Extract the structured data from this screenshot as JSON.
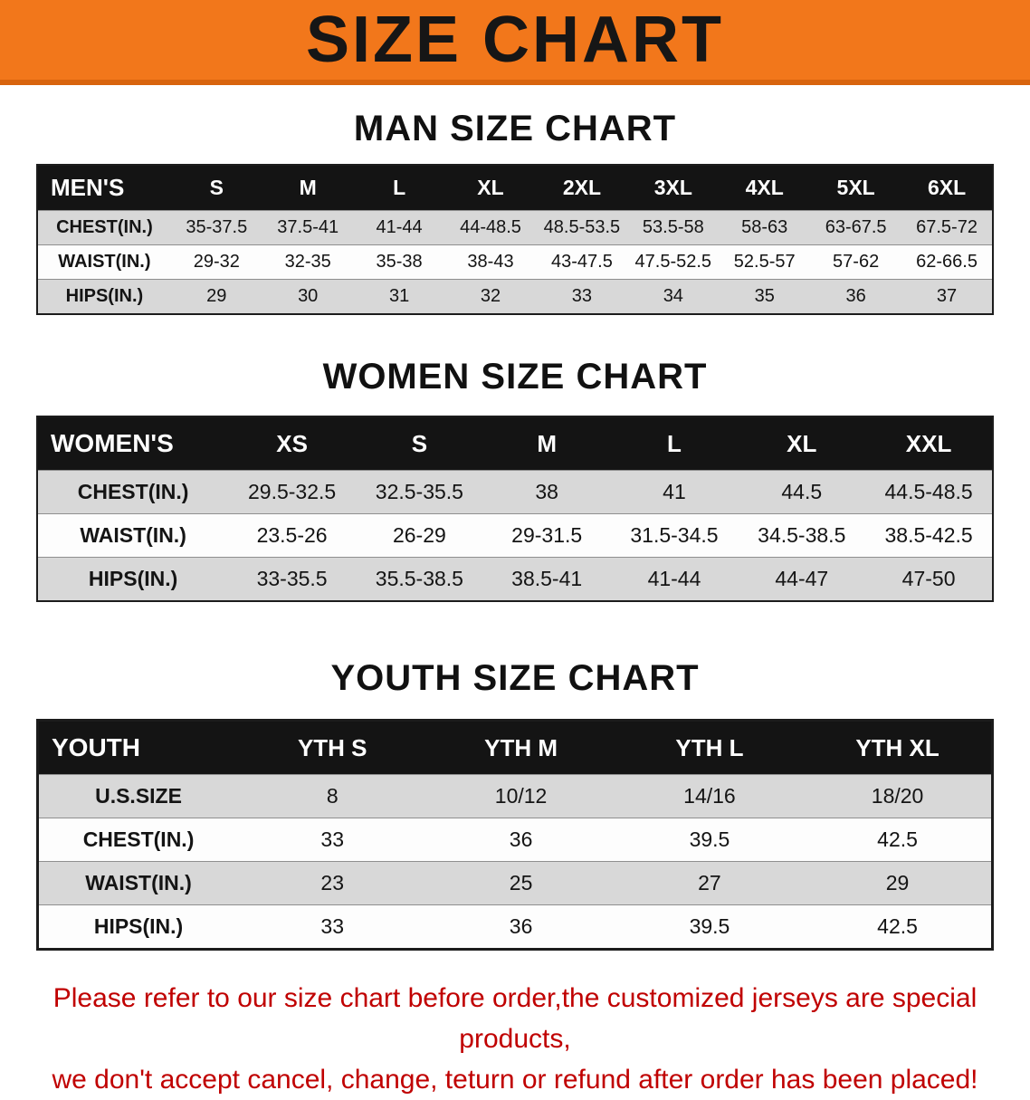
{
  "banner": {
    "title": "SIZE CHART"
  },
  "colors": {
    "banner_bg": "#F2771B",
    "banner_edge": "#D8640E",
    "table_header_bg": "#141414",
    "shaded_row_bg": "#D8D8D8",
    "notice_text": "#C00000"
  },
  "sections": [
    {
      "title": "MAN SIZE CHART",
      "header_label": "MEN'S",
      "columns": [
        "S",
        "M",
        "L",
        "XL",
        "2XL",
        "3XL",
        "4XL",
        "5XL",
        "6XL"
      ],
      "rows": [
        {
          "label": "CHEST(IN.)",
          "values": [
            "35-37.5",
            "37.5-41",
            "41-44",
            "44-48.5",
            "48.5-53.5",
            "53.5-58",
            "58-63",
            "63-67.5",
            "67.5-72"
          ]
        },
        {
          "label": "WAIST(IN.)",
          "values": [
            "29-32",
            "32-35",
            "35-38",
            "38-43",
            "43-47.5",
            "47.5-52.5",
            "52.5-57",
            "57-62",
            "62-66.5"
          ]
        },
        {
          "label": "HIPS(IN.)",
          "values": [
            "29",
            "30",
            "31",
            "32",
            "33",
            "34",
            "35",
            "36",
            "37"
          ]
        }
      ]
    },
    {
      "title": "WOMEN SIZE CHART",
      "header_label": "WOMEN'S",
      "columns": [
        "XS",
        "S",
        "M",
        "L",
        "XL",
        "XXL"
      ],
      "rows": [
        {
          "label": "CHEST(IN.)",
          "values": [
            "29.5-32.5",
            "32.5-35.5",
            "38",
            "41",
            "44.5",
            "44.5-48.5"
          ]
        },
        {
          "label": "WAIST(IN.)",
          "values": [
            "23.5-26",
            "26-29",
            "29-31.5",
            "31.5-34.5",
            "34.5-38.5",
            "38.5-42.5"
          ]
        },
        {
          "label": "HIPS(IN.)",
          "values": [
            "33-35.5",
            "35.5-38.5",
            "38.5-41",
            "41-44",
            "44-47",
            "47-50"
          ]
        }
      ]
    },
    {
      "title": "YOUTH SIZE CHART",
      "header_label": "YOUTH",
      "columns": [
        "YTH S",
        "YTH M",
        "YTH L",
        "YTH XL"
      ],
      "rows": [
        {
          "label": "U.S.SIZE",
          "values": [
            "8",
            "10/12",
            "14/16",
            "18/20"
          ]
        },
        {
          "label": "CHEST(IN.)",
          "values": [
            "33",
            "36",
            "39.5",
            "42.5"
          ]
        },
        {
          "label": "WAIST(IN.)",
          "values": [
            "23",
            "25",
            "27",
            "29"
          ]
        },
        {
          "label": "HIPS(IN.)",
          "values": [
            "33",
            "36",
            "39.5",
            "42.5"
          ]
        }
      ]
    }
  ],
  "footer": {
    "lines": [
      "Please refer to our size chart before order,the customized jerseys are special products,",
      "we don't accept cancel, change, teturn or refund after order has been placed!"
    ]
  }
}
